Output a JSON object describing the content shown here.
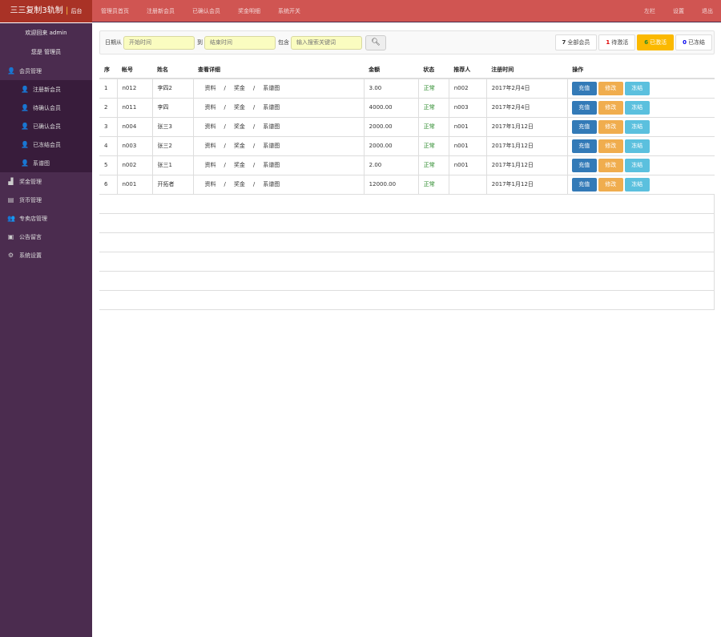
{
  "header": {
    "logo": "三三复制3轨制",
    "logo_sub": "后台",
    "nav": [
      "管理员首页",
      "注册新会员",
      "已确认会员",
      "奖金明细",
      "系统开关"
    ],
    "right_nav": [
      "左栏",
      "设置",
      "退出"
    ]
  },
  "sidebar": {
    "welcome": "欢迎回来 admin",
    "role": "您是 管理员",
    "groups": [
      {
        "label": "会员管理",
        "icon": "user-icon",
        "children": [
          "注册新会员",
          "待确认会员",
          "已确认会员",
          "已冻结会员",
          "系谱图"
        ]
      }
    ],
    "items": [
      {
        "label": "奖金管理",
        "icon": "chart-icon"
      },
      {
        "label": "货币管理",
        "icon": "money-icon"
      },
      {
        "label": "专卖店管理",
        "icon": "users-icon"
      },
      {
        "label": "公告留言",
        "icon": "board-icon"
      },
      {
        "label": "系统设置",
        "icon": "gear-icon"
      }
    ]
  },
  "filter": {
    "from_label": "日期从",
    "start_placeholder": "开始时间",
    "to_label": "到",
    "end_placeholder": "结束时间",
    "contains_label": "包含",
    "keyword_placeholder": "输入搜索关键词"
  },
  "stats": [
    {
      "count": "7",
      "label": "全部会员",
      "color": "#333333"
    },
    {
      "count": "1",
      "label": "待激活",
      "color": "#e00000"
    },
    {
      "count": "6",
      "label": "已激活",
      "color": "#2a8a2a"
    },
    {
      "count": "0",
      "label": "已冻结",
      "color": "#0000ee"
    }
  ],
  "table": {
    "headers": [
      "序",
      "帐号",
      "姓名",
      "查看详细",
      "金额",
      "状态",
      "推荐人",
      "注册时间",
      "操作"
    ],
    "detail_links": [
      "资料",
      "奖金",
      "系谱图"
    ],
    "actions": [
      "充值",
      "修改",
      "冻结"
    ],
    "rows": [
      {
        "no": "1",
        "account": "n012",
        "name": "李四2",
        "amount": "3.00",
        "status": "正常",
        "referrer": "n002",
        "date": "2017年2月4日"
      },
      {
        "no": "2",
        "account": "n011",
        "name": "李四",
        "amount": "4000.00",
        "status": "正常",
        "referrer": "n003",
        "date": "2017年2月4日"
      },
      {
        "no": "3",
        "account": "n004",
        "name": "张三3",
        "amount": "2000.00",
        "status": "正常",
        "referrer": "n001",
        "date": "2017年1月12日"
      },
      {
        "no": "4",
        "account": "n003",
        "name": "张三2",
        "amount": "2000.00",
        "status": "正常",
        "referrer": "n001",
        "date": "2017年1月12日"
      },
      {
        "no": "5",
        "account": "n002",
        "name": "张三1",
        "amount": "2.00",
        "status": "正常",
        "referrer": "n001",
        "date": "2017年1月12日"
      },
      {
        "no": "6",
        "account": "n001",
        "name": "开拓者",
        "amount": "12000.00",
        "status": "正常",
        "referrer": "",
        "date": "2017年1月12日"
      }
    ]
  }
}
